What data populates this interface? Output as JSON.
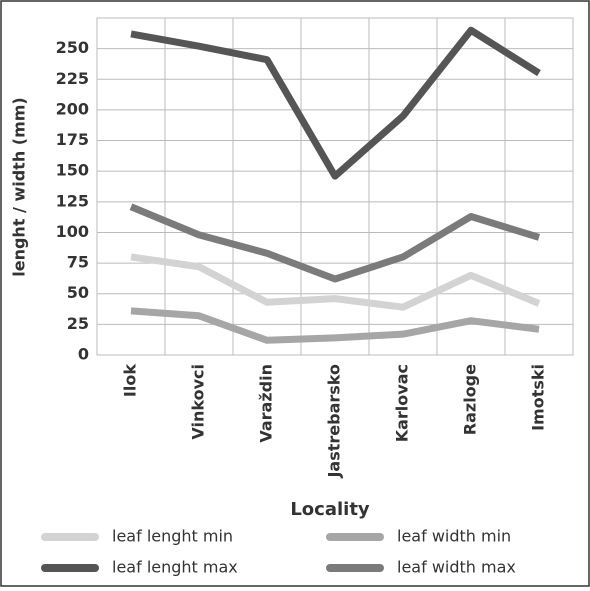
{
  "chart_data": {
    "type": "line",
    "x_label": "Locality",
    "y_label": "lenght / width (mm)",
    "categories": [
      "Ilok",
      "Vinkovci",
      "Varaždin",
      "Jastrebarsko",
      "Karlovac",
      "Razloge",
      "Imotski"
    ],
    "series": [
      {
        "name": "leaf lenght min",
        "color": "#d3d3d3",
        "values": [
          80,
          72,
          43,
          46,
          39,
          65,
          42
        ]
      },
      {
        "name": "leaf width min",
        "color": "#a6a6a6",
        "values": [
          36,
          32,
          12,
          14,
          17,
          28,
          21
        ]
      },
      {
        "name": "leaf lenght max",
        "color": "#555555",
        "values": [
          262,
          252,
          241,
          146,
          195,
          265,
          230
        ]
      },
      {
        "name": "leaf width max",
        "color": "#7b7b7b",
        "values": [
          121,
          98,
          83,
          62,
          80,
          113,
          96
        ]
      }
    ],
    "ylim": [
      0,
      275
    ],
    "yticks": [
      0,
      25,
      50,
      75,
      100,
      125,
      150,
      175,
      200,
      225,
      250
    ],
    "grid": true
  }
}
